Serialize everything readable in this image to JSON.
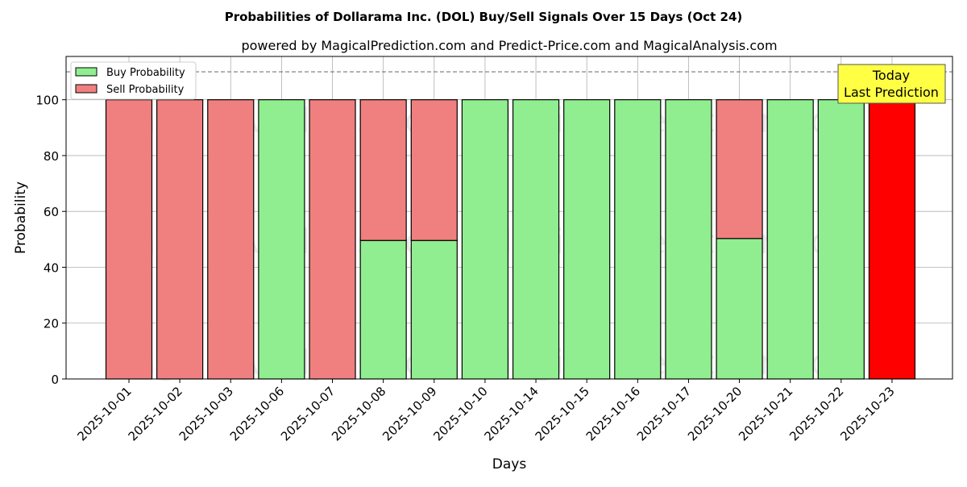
{
  "chart_data": {
    "type": "bar",
    "stacked": true,
    "title": "Probabilities of Dollarama Inc. (DOL) Buy/Sell Signals Over 15 Days (Oct 24)",
    "subtitle": "powered by MagicalPrediction.com and Predict-Price.com and MagicalAnalysis.com",
    "xlabel": "Days",
    "ylabel": "Probability",
    "ylim": [
      0,
      115.5
    ],
    "yticks": [
      0,
      20,
      40,
      60,
      80,
      100
    ],
    "grid": true,
    "legend_position": "top-left",
    "reference_line": 110,
    "categories": [
      "2025-10-01",
      "2025-10-02",
      "2025-10-03",
      "2025-10-06",
      "2025-10-07",
      "2025-10-08",
      "2025-10-09",
      "2025-10-10",
      "2025-10-14",
      "2025-10-15",
      "2025-10-16",
      "2025-10-17",
      "2025-10-20",
      "2025-10-21",
      "2025-10-22",
      "2025-10-23"
    ],
    "series": [
      {
        "name": "Buy Probability",
        "color": "#90ee90",
        "values": [
          0,
          0,
          0,
          100,
          0,
          49.6,
          49.6,
          100,
          100,
          100,
          100,
          100,
          50.3,
          100,
          100,
          0
        ]
      },
      {
        "name": "Sell Probability",
        "color": "#f08080",
        "values": [
          100,
          100,
          100,
          0,
          100,
          50.4,
          50.4,
          0,
          0,
          0,
          0,
          0,
          49.7,
          0,
          0,
          100
        ]
      }
    ],
    "highlight": {
      "index": 15,
      "color": "#ff0000",
      "label_line1": "Today",
      "label_line2": "Last Prediction"
    },
    "watermarks": [
      "MagicalAnalysis.com",
      "MagicalPrediction.com"
    ]
  }
}
